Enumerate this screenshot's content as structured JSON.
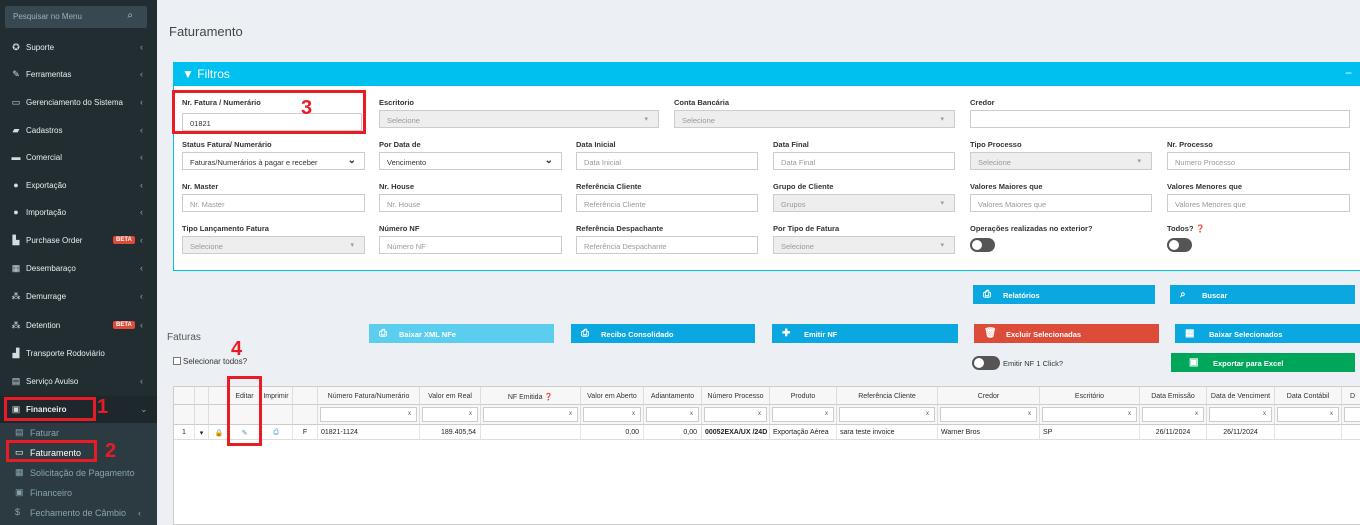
{
  "sidebar": {
    "search_placeholder": "Pesquisar no Menu",
    "items": [
      {
        "label": "Suporte",
        "icon": "support-icon"
      },
      {
        "label": "Ferramentas",
        "icon": "wrench-icon"
      },
      {
        "label": "Gerenciamento do Sistema",
        "icon": "monitor-icon"
      },
      {
        "label": "Cadastros",
        "icon": "book-icon"
      },
      {
        "label": "Comercial",
        "icon": "briefcase-icon"
      },
      {
        "label": "Exportação",
        "icon": "upload-icon"
      },
      {
        "label": "Importação",
        "icon": "download-icon"
      },
      {
        "label": "Purchase Order",
        "icon": "chart-icon",
        "badge": "BETA"
      },
      {
        "label": "Desembaraço",
        "icon": "calculator-icon"
      },
      {
        "label": "Demurrage",
        "icon": "network-icon"
      },
      {
        "label": "Detention",
        "icon": "network-icon",
        "badge": "BETA"
      },
      {
        "label": "Transporte Rodoviário",
        "icon": "truck-icon"
      },
      {
        "label": "Serviço Avulso",
        "icon": "document-icon"
      },
      {
        "label": "Financeiro",
        "icon": "money-icon"
      }
    ],
    "subitems": [
      {
        "label": "Faturar",
        "icon": "invoice-icon"
      },
      {
        "label": "Faturamento",
        "icon": "billing-icon"
      },
      {
        "label": "Solicitação de Pagamento",
        "icon": "calculator-icon"
      },
      {
        "label": "Financeiro",
        "icon": "money-icon"
      },
      {
        "label": "Fechamento de Câmbio",
        "icon": "dollar-icon"
      }
    ]
  },
  "annotations": {
    "n1": "1",
    "n2": "2",
    "n3": "3",
    "n4": "4"
  },
  "page": {
    "title": "Faturamento"
  },
  "filters": {
    "title": "Filtros",
    "collapse": "−",
    "nr_fatura": {
      "label": "Nr. Fatura / Numerário",
      "value": "01821"
    },
    "escritorio": {
      "label": "Escritorio",
      "placeholder": "Selecione"
    },
    "conta_bancaria": {
      "label": "Conta Bancária",
      "placeholder": "Selecione"
    },
    "credor": {
      "label": "Credor"
    },
    "status_fatura": {
      "label": "Status Fatura/ Numerário",
      "value": "Faturas/Numerários à pagar e receber"
    },
    "por_data_de": {
      "label": "Por Data de",
      "value": "Vencimento"
    },
    "data_inicial": {
      "label": "Data Inicial",
      "placeholder": "Data Inicial"
    },
    "data_final": {
      "label": "Data Final",
      "placeholder": "Data Final"
    },
    "tipo_processo": {
      "label": "Tipo Processo",
      "placeholder": "Selecione"
    },
    "nr_processo": {
      "label": "Nr. Processo",
      "placeholder": "Numero Processo"
    },
    "nr_master": {
      "label": "Nr. Master",
      "placeholder": "Nr. Master"
    },
    "nr_house": {
      "label": "Nr. House",
      "placeholder": "Nr. House"
    },
    "ref_cliente": {
      "label": "Referência Cliente",
      "placeholder": "Referência Cliente"
    },
    "grupo_cliente": {
      "label": "Grupo de Cliente",
      "placeholder": "Grupos"
    },
    "valores_maiores": {
      "label": "Valores Maiores que",
      "placeholder": "Valores Maiores que"
    },
    "valores_menores": {
      "label": "Valores Menores que",
      "placeholder": "Valores Menores que"
    },
    "tipo_lancamento": {
      "label": "Tipo Lançamento Fatura",
      "placeholder": "Selecione"
    },
    "numero_nf": {
      "label": "Número NF",
      "placeholder": "Número NF"
    },
    "ref_despachante": {
      "label": "Referência Despachante",
      "placeholder": "Referência Despachante"
    },
    "tipo_fatura": {
      "label": "Por Tipo de Fatura",
      "placeholder": "Selecione"
    },
    "operacoes_exterior": {
      "label": "Operações realizadas no exterior?"
    },
    "todos": {
      "label": "Todos?"
    }
  },
  "actions": {
    "relatorios": "Relatórios",
    "buscar": "Buscar",
    "baixar_xml": "Baixar XML NFe",
    "recibo": "Recibo Consolidado",
    "emitir_nf": "Emitir NF",
    "excluir": "Excluir Selecionadas",
    "baixar_sel": "Baixar Selecionados",
    "emitir_nf_1click": "Emitir NF 1 Click?",
    "exportar_excel": "Exportar para Excel"
  },
  "faturas": {
    "title": "Faturas",
    "select_all": "Selecionar todos?",
    "columns": [
      "Editar",
      "Imprimir",
      "Número Fatura/Numerário",
      "Valor em Real",
      "NF Emitida",
      "Valor em Aberto",
      "Adiantamento",
      "Número Processo",
      "Produto",
      "Referência Cliente",
      "Credor",
      "Escritório",
      "Data Emissão",
      "Data de Venciment",
      "Data Contábil",
      "D"
    ],
    "filter_clear": "x",
    "rows": [
      {
        "idx": "1",
        "type": "F",
        "numero": "01821-1124",
        "valor_real": "189.405,54",
        "valor_aberto": "0,00",
        "adiantamento": "0,00",
        "processo": "00052EXA/UX /24D",
        "produto": "Exportação Aérea",
        "ref_cliente": "sara teste invoice",
        "credor": "Warner Bros",
        "escritorio": "SP",
        "data_emissao": "26/11/2024",
        "data_venc": "26/11/2024"
      }
    ]
  },
  "colors": {
    "sidebar_bg": "#222d32",
    "accent": "#00c0ef",
    "danger": "#dd4b39",
    "success": "#00a65a",
    "annotation": "#e81c24"
  }
}
